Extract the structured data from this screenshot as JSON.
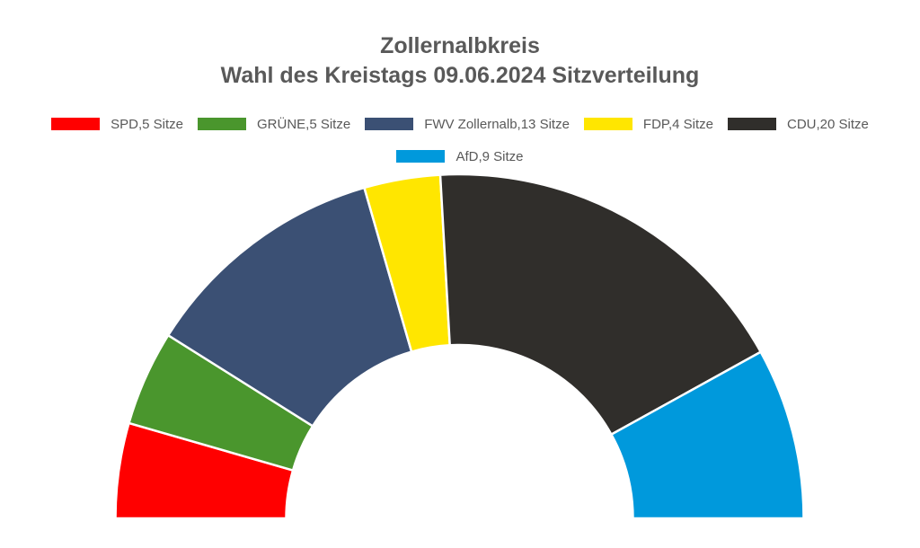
{
  "chart_data": {
    "type": "pie",
    "subtype": "half-donut (parliament seat distribution)",
    "title": "Zollernalbkreis",
    "subtitle": "Wahl des Kreistags 09.06.2024 Sitzverteilung",
    "categories": [
      "SPD",
      "GRÜNE",
      "FWV Zollernalb",
      "FDP",
      "CDU",
      "AfD"
    ],
    "values": [
      5,
      5,
      13,
      4,
      20,
      9
    ],
    "total": 56,
    "unit": "Sitze",
    "colors": [
      "#ff0000",
      "#4a962d",
      "#3b5074",
      "#ffe600",
      "#302e2b",
      "#0099dc"
    ],
    "legend": [
      {
        "label": "SPD,5 Sitze",
        "color": "#ff0000"
      },
      {
        "label": "GRÜNE,5 Sitze",
        "color": "#4a962d"
      },
      {
        "label": "FWV Zollernalb,13 Sitze",
        "color": "#3b5074"
      },
      {
        "label": "FDP,4 Sitze",
        "color": "#ffe600"
      },
      {
        "label": "CDU,20 Sitze",
        "color": "#302e2b"
      },
      {
        "label": "AfD,9 Sitze",
        "color": "#0099dc"
      }
    ],
    "legend_position": "top",
    "grid": false
  }
}
